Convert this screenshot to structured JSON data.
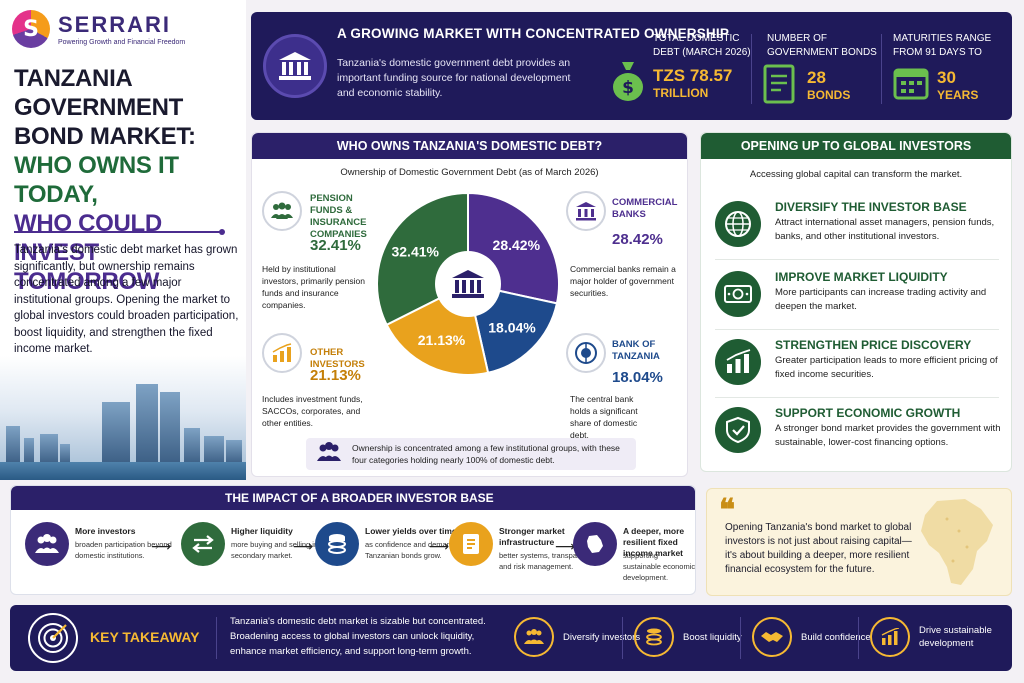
{
  "brand": {
    "logo_letter": "S",
    "name": "SERRARI",
    "tagline": "Powering Growth and Financial Freedom"
  },
  "title": {
    "line1": "Tanzania Government Bond Market:",
    "line2": "Who owns it today,",
    "line3": "who could invest tomorrow"
  },
  "intro": "Tanzania's domestic debt market has grown significantly, but ownership remains concentrated among a few major institutional groups. Opening the market to global investors could broaden participation, boost liquidity, and strengthen the fixed income market.",
  "banner": {
    "title": "A GROWING MARKET WITH CONCENTRATED OWNERSHIP",
    "text": "Tanzania's domestic government debt provides an important funding source for national development and economic stability.",
    "stats": [
      {
        "label": "Total domestic debt (March 2026)",
        "value": "TZS 78.57",
        "sub": "TRILLION",
        "icon": "money-bag-icon"
      },
      {
        "label": "Number of government bonds",
        "value": "28",
        "sub": "BONDS",
        "icon": "document-icon"
      },
      {
        "label": "Maturities range from 91 days to",
        "value": "30",
        "sub": "YEARS",
        "icon": "calendar-icon"
      }
    ]
  },
  "ownership": {
    "heading": "WHO OWNS TANZANIA'S DOMESTIC DEBT?",
    "subtitle": "Ownership of Domestic Government Debt (as of March 2026)",
    "segments": [
      {
        "name": "Pension funds & insurance companies",
        "pct": "32.41%",
        "desc": "Held by institutional investors, primarily pension funds and insurance companies.",
        "color": "#2f6b3c",
        "icon": "people-icon"
      },
      {
        "name": "Commercial banks",
        "pct": "28.42%",
        "desc": "Commercial banks remain a major holder of government securities.",
        "color": "#4e2f8f",
        "icon": "bank-icon"
      },
      {
        "name": "Bank of Tanzania",
        "pct": "18.04%",
        "desc": "The central bank holds a significant share of domestic debt.",
        "color": "#1e4a8c",
        "icon": "seal-icon"
      },
      {
        "name": "Other investors",
        "pct": "21.13%",
        "desc": "Includes investment funds, SACCOs, corporates, and other entities.",
        "color": "#e9a21d",
        "icon": "growth-chart-icon"
      }
    ],
    "note": "Ownership is concentrated among a few institutional groups, with these four categories holding nearly 100% of domestic debt."
  },
  "chart_data": {
    "type": "pie",
    "title": "Ownership of Domestic Government Debt (as of March 2026)",
    "categories": [
      "Pension funds & insurance companies",
      "Commercial banks",
      "Bank of Tanzania",
      "Other investors"
    ],
    "values": [
      32.41,
      28.42,
      18.04,
      21.13
    ],
    "labels": [
      "32.41%",
      "28.42%",
      "18.04%",
      "21.13%"
    ],
    "colors": [
      "#2f6b3c",
      "#4e2f8f",
      "#1e4a8c",
      "#e9a21d"
    ]
  },
  "global": {
    "heading": "OPENING UP TO GLOBAL INVESTORS",
    "subtitle": "Accessing global capital can transform the market.",
    "items": [
      {
        "title": "Diversify the investor base",
        "desc": "Attract international asset managers, pension funds, banks, and other institutional investors.",
        "icon": "globe-icon"
      },
      {
        "title": "Improve market liquidity",
        "desc": "More participants can increase trading activity and deepen the market.",
        "icon": "cash-icon"
      },
      {
        "title": "Strengthen price discovery",
        "desc": "Greater participation leads to more efficient pricing of fixed income securities.",
        "icon": "bar-chart-icon"
      },
      {
        "title": "Support economic growth",
        "desc": "A stronger bond market provides the government with sustainable, lower-cost financing options.",
        "icon": "shield-check-icon"
      }
    ]
  },
  "impact": {
    "heading": "THE IMPACT OF A BROADER INVESTOR BASE",
    "steps": [
      {
        "title": "More investors",
        "desc": "broaden participation beyond domestic institutions.",
        "icon": "people-icon",
        "color": "#3b2a78"
      },
      {
        "title": "Higher liquidity",
        "desc": "more buying and selling in the secondary market.",
        "icon": "exchange-arrows-icon",
        "color": "#2f6b3c"
      },
      {
        "title": "Lower yields over time",
        "desc": "as confidence and demand for Tanzanian bonds grow.",
        "icon": "coins-icon",
        "color": "#1e4a8c"
      },
      {
        "title": "Stronger market infrastructure",
        "desc": "better systems, transparency, and risk management.",
        "icon": "checklist-icon",
        "color": "#e9a21d"
      },
      {
        "title": "A deeper, more resilient fixed income market",
        "desc": "supporting sustainable economic development.",
        "icon": "map-icon",
        "color": "#3b2a78"
      }
    ]
  },
  "quote": {
    "mark": "❝",
    "text": "Opening Tanzania's bond market to global investors is not just about raising capital—it's about building a deeper, more resilient financial ecosystem for the future."
  },
  "takeaway": {
    "title": "KEY TAKEAWAY",
    "text": "Tanzania's domestic debt market is sizable but concentrated. Broadening access to global investors can unlock liquidity, enhance market efficiency, and support long-term growth.",
    "items": [
      {
        "label": "Diversify investors",
        "icon": "people-icon"
      },
      {
        "label": "Boost liquidity",
        "icon": "coins-icon"
      },
      {
        "label": "Build confidence",
        "icon": "handshake-icon"
      },
      {
        "label": "Drive sustainable development",
        "icon": "growth-chart-icon"
      }
    ]
  }
}
